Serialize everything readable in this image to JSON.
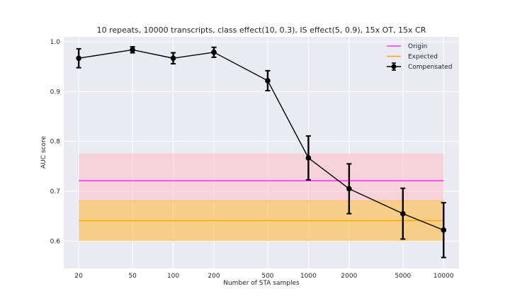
{
  "chart_data": {
    "type": "line",
    "title": "10 repeats, 10000 transcripts, class effect(10, 0.3), IS effect(5, 0.9), 15x OT, 15x CR",
    "xlabel": "Number of STA samples",
    "ylabel": "AUC score",
    "xscale": "log",
    "xlim": [
      15.5,
      13000
    ],
    "ylim": [
      0.545,
      1.01
    ],
    "x_ticks": [
      20,
      50,
      100,
      200,
      500,
      1000,
      2000,
      5000,
      10000
    ],
    "x_tick_labels": [
      "20",
      "50",
      "100",
      "200",
      "500",
      "1000",
      "2000",
      "5000",
      "10000"
    ],
    "y_ticks": [
      0.6,
      0.7,
      0.8,
      0.9,
      1.0
    ],
    "y_tick_labels": [
      "0.6",
      "0.7",
      "0.8",
      "0.9",
      "1.0"
    ],
    "grid": true,
    "legend_position": "top-right",
    "series": [
      {
        "name": "Origin",
        "kind": "hline",
        "color": "#ff33ff",
        "y": 0.721,
        "x_range": [
          20,
          10000
        ],
        "band": [
          0.679,
          0.776
        ],
        "band_color": "#ffc0cb"
      },
      {
        "name": "Expected",
        "kind": "hline",
        "color": "#ffa500",
        "y": 0.641,
        "x_range": [
          20,
          10000
        ],
        "band": [
          0.6,
          0.682
        ],
        "band_color": "#ffb732"
      },
      {
        "name": "Compensated",
        "kind": "errorbar",
        "color": "#000000",
        "x": [
          20,
          50,
          100,
          200,
          500,
          1000,
          2000,
          5000,
          10000
        ],
        "y": [
          0.967,
          0.984,
          0.967,
          0.979,
          0.922,
          0.767,
          0.705,
          0.655,
          0.622
        ],
        "yerr": [
          0.019,
          0.006,
          0.011,
          0.01,
          0.02,
          0.044,
          0.05,
          0.051,
          0.055
        ]
      }
    ]
  }
}
